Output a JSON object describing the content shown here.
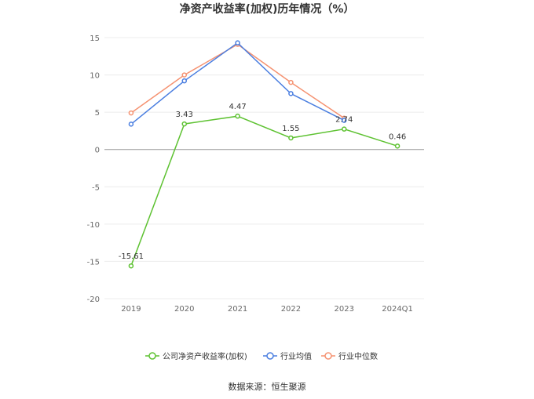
{
  "chart_data": {
    "type": "line",
    "title": "净资产收益率(加权)历年情况（%）",
    "categories": [
      "2019",
      "2020",
      "2021",
      "2022",
      "2023",
      "2024Q1"
    ],
    "ylim": [
      -20,
      15
    ],
    "yticks": [
      15,
      10,
      5,
      0,
      -5,
      -10,
      -15,
      -20
    ],
    "grid": true,
    "legend_position": "bottom",
    "series": [
      {
        "name": "公司净资产收益率(加权)",
        "color": "#5ec232",
        "values": [
          -15.61,
          3.43,
          4.47,
          1.55,
          2.74,
          0.46
        ],
        "labels": [
          "-15.61",
          "3.43",
          "4.47",
          "1.55",
          "2.74",
          "0.46"
        ]
      },
      {
        "name": "行业均值",
        "color": "#4a7ee0",
        "values": [
          3.4,
          9.2,
          14.3,
          7.5,
          3.9,
          null
        ]
      },
      {
        "name": "行业中位数",
        "color": "#f59271",
        "values": [
          4.9,
          10.0,
          14.1,
          9.0,
          4.2,
          null
        ]
      }
    ]
  },
  "footer": {
    "source": "数据来源：恒生聚源"
  }
}
